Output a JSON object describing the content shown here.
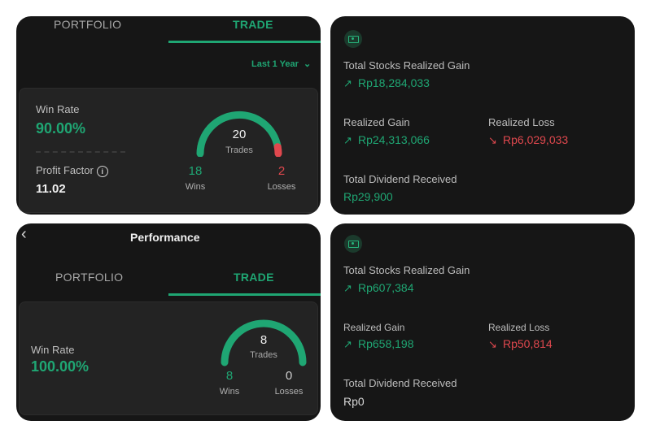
{
  "top_trade": {
    "tabs": {
      "portfolio": "PORTFOLIO",
      "trade": "TRADE"
    },
    "period": "Last 1 Year",
    "win_rate_label": "Win Rate",
    "win_rate_value": "90.00%",
    "profit_factor_label": "Profit Factor",
    "profit_factor_value": "11.02",
    "gauge": {
      "count": "20",
      "unit": "Trades",
      "wins": "18",
      "losses": "2",
      "wins_label": "Wins",
      "losses_label": "Losses"
    }
  },
  "top_realized": {
    "total_label": "Total Stocks Realized Gain",
    "total_value": "Rp18,284,033",
    "gain_label": "Realized Gain",
    "gain_value": "Rp24,313,066",
    "loss_label": "Realized Loss",
    "loss_value": "Rp6,029,033",
    "dividend_label": "Total Dividend Received",
    "dividend_value": "Rp29,900"
  },
  "bottom_trade": {
    "title": "Performance",
    "tabs": {
      "portfolio": "PORTFOLIO",
      "trade": "TRADE"
    },
    "win_rate_label": "Win Rate",
    "win_rate_value": "100.00%",
    "gauge": {
      "count": "8",
      "unit": "Trades",
      "wins": "8",
      "losses": "0",
      "wins_label": "Wins",
      "losses_label": "Losses"
    }
  },
  "bottom_realized": {
    "total_label": "Total Stocks Realized Gain",
    "total_value": "Rp607,384",
    "gain_label": "Realized Gain",
    "gain_value": "Rp658,198",
    "loss_label": "Realized Loss",
    "loss_value": "Rp50,814",
    "dividend_label": "Total Dividend Received",
    "dividend_value": "Rp0"
  },
  "icons": [
    "money-icon",
    "arrow-up-right-icon",
    "arrow-down-right-icon",
    "chevron-down-icon",
    "back-chevron-icon",
    "info-icon"
  ],
  "colors": {
    "green": "#1fa673",
    "red": "#e0484e",
    "panel": "#161616",
    "card": "#232323"
  }
}
